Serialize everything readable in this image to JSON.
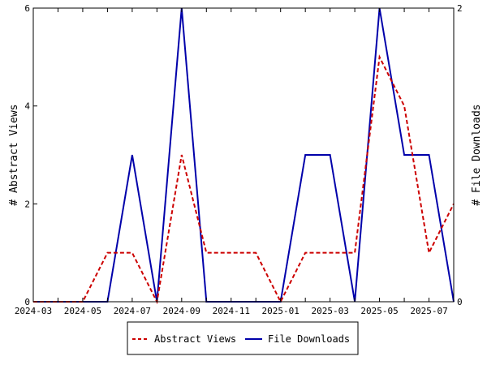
{
  "chart_data": {
    "type": "line",
    "x": [
      "2024-03",
      "2024-04",
      "2024-05",
      "2024-06",
      "2024-07",
      "2024-08",
      "2024-09",
      "2024-10",
      "2024-11",
      "2024-12",
      "2025-01",
      "2025-02",
      "2025-03",
      "2025-04",
      "2025-05",
      "2025-06",
      "2025-07",
      "2025-08"
    ],
    "x_tick_labels": [
      "2024-03",
      "2024-05",
      "2024-07",
      "2024-09",
      "2024-11",
      "2025-01",
      "2025-03",
      "2025-05",
      "2025-07"
    ],
    "series": [
      {
        "name": "Abstract Views",
        "axis": "left",
        "color": "#cc0000",
        "dash": "dashed",
        "values": [
          0,
          0,
          0,
          1,
          1,
          0,
          3,
          1,
          1,
          1,
          0,
          1,
          1,
          1,
          5,
          4,
          1,
          2
        ]
      },
      {
        "name": "File Downloads",
        "axis": "right",
        "color": "#0000aa",
        "dash": "solid",
        "values": [
          0,
          0,
          0,
          0,
          1,
          0,
          2,
          0,
          0,
          0,
          0,
          1,
          1,
          0,
          2,
          1,
          1,
          0
        ]
      }
    ],
    "ylabel": "# Abstract Views",
    "y2label": "# File Downloads",
    "ylim": [
      0,
      6
    ],
    "y_ticks": [
      0,
      2,
      4,
      6
    ],
    "y2lim": [
      0,
      2
    ],
    "y2_ticks": [
      0,
      2
    ],
    "grid": false,
    "legend_position": "bottom"
  }
}
